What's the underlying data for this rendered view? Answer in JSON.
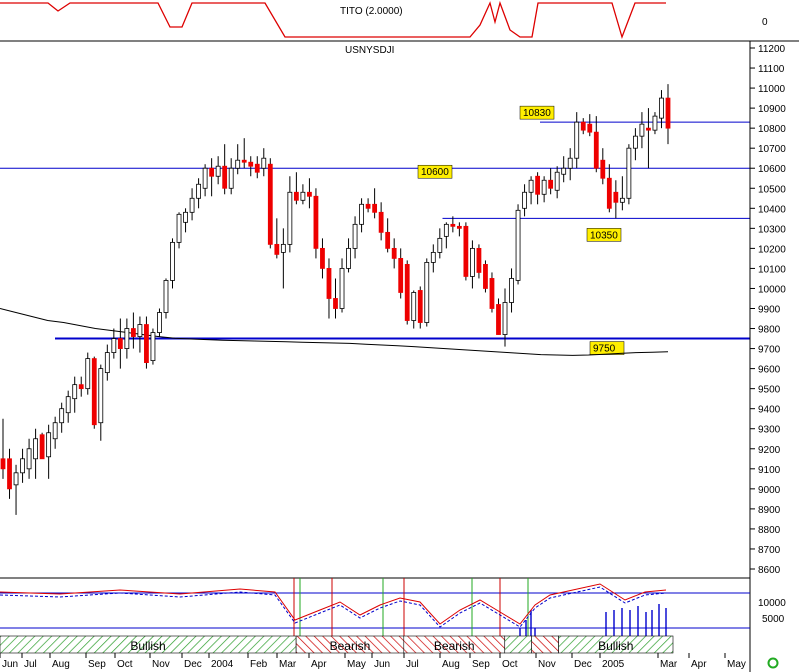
{
  "colors": {
    "bull": "#ffffff",
    "bear": "#ee0000",
    "wick": "#000000",
    "tito": "#dd0000",
    "level": "#0000cc",
    "ma": "#000000",
    "label_bg": "#ffee00",
    "grid_border": "#000000",
    "green_hatch": "#2a9d2a",
    "red_hatch": "#cc0000"
  },
  "top_panel": {
    "title": "TITO (2.0000)",
    "axis_label": "0"
  },
  "chart_data": {
    "type": "candlestick",
    "title": "USNYSDJI",
    "y_ticks": [
      8600,
      8700,
      8800,
      8900,
      9000,
      9100,
      9200,
      9300,
      9400,
      9500,
      9600,
      9700,
      9800,
      9900,
      10000,
      10100,
      10200,
      10300,
      10400,
      10500,
      10600,
      10700,
      10800,
      10900,
      11000,
      11100,
      11200
    ],
    "ylim": [
      8600,
      11200
    ],
    "x_labels": [
      "Jun",
      "Jul",
      "Aug",
      "Sep",
      "Oct",
      "Nov",
      "Dec",
      "2004",
      "Feb",
      "Mar",
      "Apr",
      "May",
      "Jun",
      "Jul",
      "Aug",
      "Sep",
      "Oct",
      "Nov",
      "Dec",
      "2005",
      "Mar",
      "Apr",
      "May"
    ],
    "levels": [
      {
        "value": 10830,
        "label": "10830",
        "start": 0.72
      },
      {
        "value": 10600,
        "label": "10600",
        "start": 0.0
      },
      {
        "value": 10350,
        "label": "10350",
        "start": 0.59
      },
      {
        "value": 9750,
        "label": "9750",
        "start": 0.07
      }
    ],
    "moving_average": [
      9900,
      9880,
      9860,
      9840,
      9830,
      9815,
      9800,
      9790,
      9780,
      9770,
      9760,
      9752,
      9748,
      9745,
      9742,
      9740,
      9738,
      9736,
      9734,
      9732,
      9730,
      9728,
      9726,
      9722,
      9718,
      9714,
      9710,
      9705,
      9700,
      9695,
      9690,
      9685,
      9680,
      9675,
      9670,
      9668,
      9666,
      9668,
      9672,
      9676,
      9680,
      9682,
      9684
    ],
    "candles": [
      {
        "o": 9150,
        "h": 9350,
        "l": 9050,
        "c": 9100
      },
      {
        "o": 9150,
        "h": 9200,
        "l": 8950,
        "c": 9000
      },
      {
        "o": 9020,
        "h": 9120,
        "l": 8870,
        "c": 9080
      },
      {
        "o": 9080,
        "h": 9200,
        "l": 9030,
        "c": 9150
      },
      {
        "o": 9100,
        "h": 9250,
        "l": 9050,
        "c": 9200
      },
      {
        "o": 9150,
        "h": 9300,
        "l": 9050,
        "c": 9250
      },
      {
        "o": 9270,
        "h": 9280,
        "l": 9150,
        "c": 9150
      },
      {
        "o": 9160,
        "h": 9320,
        "l": 9050,
        "c": 9280
      },
      {
        "o": 9250,
        "h": 9360,
        "l": 9200,
        "c": 9330
      },
      {
        "o": 9330,
        "h": 9430,
        "l": 9280,
        "c": 9400
      },
      {
        "o": 9380,
        "h": 9490,
        "l": 9330,
        "c": 9460
      },
      {
        "o": 9450,
        "h": 9560,
        "l": 9380,
        "c": 9520
      },
      {
        "o": 9520,
        "h": 9560,
        "l": 9460,
        "c": 9500
      },
      {
        "o": 9500,
        "h": 9680,
        "l": 9470,
        "c": 9650
      },
      {
        "o": 9650,
        "h": 9660,
        "l": 9300,
        "c": 9320
      },
      {
        "o": 9330,
        "h": 9620,
        "l": 9240,
        "c": 9600
      },
      {
        "o": 9580,
        "h": 9720,
        "l": 9540,
        "c": 9680
      },
      {
        "o": 9680,
        "h": 9800,
        "l": 9650,
        "c": 9750
      },
      {
        "o": 9750,
        "h": 9850,
        "l": 9600,
        "c": 9700
      },
      {
        "o": 9700,
        "h": 9850,
        "l": 9650,
        "c": 9800
      },
      {
        "o": 9800,
        "h": 9880,
        "l": 9700,
        "c": 9760
      },
      {
        "o": 9760,
        "h": 9860,
        "l": 9680,
        "c": 9820
      },
      {
        "o": 9820,
        "h": 9860,
        "l": 9600,
        "c": 9630
      },
      {
        "o": 9640,
        "h": 9800,
        "l": 9620,
        "c": 9780
      },
      {
        "o": 9780,
        "h": 9900,
        "l": 9760,
        "c": 9880
      },
      {
        "o": 9880,
        "h": 10050,
        "l": 9850,
        "c": 10040
      },
      {
        "o": 10040,
        "h": 10250,
        "l": 10000,
        "c": 10230
      },
      {
        "o": 10230,
        "h": 10380,
        "l": 10200,
        "c": 10370
      },
      {
        "o": 10330,
        "h": 10400,
        "l": 10280,
        "c": 10380
      },
      {
        "o": 10380,
        "h": 10500,
        "l": 10340,
        "c": 10450
      },
      {
        "o": 10450,
        "h": 10550,
        "l": 10400,
        "c": 10520
      },
      {
        "o": 10500,
        "h": 10620,
        "l": 10460,
        "c": 10600
      },
      {
        "o": 10600,
        "h": 10650,
        "l": 10460,
        "c": 10560
      },
      {
        "o": 10560,
        "h": 10660,
        "l": 10520,
        "c": 10610
      },
      {
        "o": 10610,
        "h": 10720,
        "l": 10470,
        "c": 10500
      },
      {
        "o": 10500,
        "h": 10650,
        "l": 10470,
        "c": 10600
      },
      {
        "o": 10600,
        "h": 10720,
        "l": 10570,
        "c": 10640
      },
      {
        "o": 10640,
        "h": 10750,
        "l": 10600,
        "c": 10630
      },
      {
        "o": 10630,
        "h": 10660,
        "l": 10560,
        "c": 10610
      },
      {
        "o": 10620,
        "h": 10660,
        "l": 10550,
        "c": 10580
      },
      {
        "o": 10600,
        "h": 10700,
        "l": 10560,
        "c": 10650
      },
      {
        "o": 10620,
        "h": 10650,
        "l": 10200,
        "c": 10220
      },
      {
        "o": 10220,
        "h": 10350,
        "l": 10150,
        "c": 10170
      },
      {
        "o": 10180,
        "h": 10300,
        "l": 10000,
        "c": 10220
      },
      {
        "o": 10220,
        "h": 10560,
        "l": 10180,
        "c": 10480
      },
      {
        "o": 10480,
        "h": 10580,
        "l": 10420,
        "c": 10440
      },
      {
        "o": 10440,
        "h": 10520,
        "l": 10420,
        "c": 10480
      },
      {
        "o": 10480,
        "h": 10550,
        "l": 10400,
        "c": 10460
      },
      {
        "o": 10460,
        "h": 10500,
        "l": 10150,
        "c": 10200
      },
      {
        "o": 10200,
        "h": 10250,
        "l": 10050,
        "c": 10100
      },
      {
        "o": 10100,
        "h": 10150,
        "l": 9850,
        "c": 9950
      },
      {
        "o": 9950,
        "h": 10050,
        "l": 9850,
        "c": 9900
      },
      {
        "o": 9900,
        "h": 10150,
        "l": 9880,
        "c": 10100
      },
      {
        "o": 10100,
        "h": 10250,
        "l": 10080,
        "c": 10200
      },
      {
        "o": 10200,
        "h": 10360,
        "l": 10150,
        "c": 10320
      },
      {
        "o": 10320,
        "h": 10450,
        "l": 10280,
        "c": 10420
      },
      {
        "o": 10420,
        "h": 10450,
        "l": 10380,
        "c": 10400
      },
      {
        "o": 10420,
        "h": 10500,
        "l": 10350,
        "c": 10380
      },
      {
        "o": 10380,
        "h": 10430,
        "l": 10240,
        "c": 10280
      },
      {
        "o": 10280,
        "h": 10350,
        "l": 10180,
        "c": 10200
      },
      {
        "o": 10200,
        "h": 10250,
        "l": 10100,
        "c": 10150
      },
      {
        "o": 10150,
        "h": 10200,
        "l": 9950,
        "c": 9980
      },
      {
        "o": 10120,
        "h": 10140,
        "l": 9820,
        "c": 9840
      },
      {
        "o": 9840,
        "h": 9990,
        "l": 9800,
        "c": 9980
      },
      {
        "o": 9990,
        "h": 10010,
        "l": 9800,
        "c": 9830
      },
      {
        "o": 9830,
        "h": 10150,
        "l": 9810,
        "c": 10130
      },
      {
        "o": 10130,
        "h": 10220,
        "l": 10080,
        "c": 10180
      },
      {
        "o": 10180,
        "h": 10300,
        "l": 10150,
        "c": 10250
      },
      {
        "o": 10260,
        "h": 10330,
        "l": 10200,
        "c": 10320
      },
      {
        "o": 10320,
        "h": 10360,
        "l": 10280,
        "c": 10310
      },
      {
        "o": 10310,
        "h": 10330,
        "l": 10260,
        "c": 10300
      },
      {
        "o": 10310,
        "h": 10330,
        "l": 10040,
        "c": 10060
      },
      {
        "o": 10060,
        "h": 10240,
        "l": 10000,
        "c": 10200
      },
      {
        "o": 10200,
        "h": 10220,
        "l": 10050,
        "c": 10080
      },
      {
        "o": 10120,
        "h": 10140,
        "l": 9980,
        "c": 10000
      },
      {
        "o": 10050,
        "h": 10080,
        "l": 9880,
        "c": 9900
      },
      {
        "o": 9920,
        "h": 9950,
        "l": 9770,
        "c": 9770
      },
      {
        "o": 9770,
        "h": 10000,
        "l": 9710,
        "c": 9930
      },
      {
        "o": 9930,
        "h": 10100,
        "l": 9880,
        "c": 10050
      },
      {
        "o": 10040,
        "h": 10420,
        "l": 10020,
        "c": 10390
      },
      {
        "o": 10400,
        "h": 10520,
        "l": 10360,
        "c": 10480
      },
      {
        "o": 10480,
        "h": 10560,
        "l": 10420,
        "c": 10540
      },
      {
        "o": 10560,
        "h": 10580,
        "l": 10420,
        "c": 10470
      },
      {
        "o": 10470,
        "h": 10560,
        "l": 10430,
        "c": 10540
      },
      {
        "o": 10540,
        "h": 10600,
        "l": 10470,
        "c": 10500
      },
      {
        "o": 10490,
        "h": 10610,
        "l": 10450,
        "c": 10580
      },
      {
        "o": 10570,
        "h": 10660,
        "l": 10530,
        "c": 10600
      },
      {
        "o": 10600,
        "h": 10700,
        "l": 10540,
        "c": 10650
      },
      {
        "o": 10650,
        "h": 10880,
        "l": 10600,
        "c": 10830
      },
      {
        "o": 10830,
        "h": 10850,
        "l": 10770,
        "c": 10790
      },
      {
        "o": 10820,
        "h": 10870,
        "l": 10760,
        "c": 10780
      },
      {
        "o": 10780,
        "h": 10860,
        "l": 10580,
        "c": 10600
      },
      {
        "o": 10640,
        "h": 10700,
        "l": 10520,
        "c": 10550
      },
      {
        "o": 10550,
        "h": 10620,
        "l": 10380,
        "c": 10400
      },
      {
        "o": 10480,
        "h": 10540,
        "l": 10350,
        "c": 10430
      },
      {
        "o": 10430,
        "h": 10560,
        "l": 10390,
        "c": 10450
      },
      {
        "o": 10450,
        "h": 10720,
        "l": 10420,
        "c": 10700
      },
      {
        "o": 10700,
        "h": 10800,
        "l": 10640,
        "c": 10760
      },
      {
        "o": 10760,
        "h": 10880,
        "l": 10700,
        "c": 10820
      },
      {
        "o": 10800,
        "h": 10900,
        "l": 10600,
        "c": 10790
      },
      {
        "o": 10790,
        "h": 10880,
        "l": 10770,
        "c": 10860
      },
      {
        "o": 10850,
        "h": 10990,
        "l": 10800,
        "c": 10950
      },
      {
        "o": 10950,
        "h": 11020,
        "l": 10720,
        "c": 10800
      }
    ],
    "bottom_panel": {
      "axis_labels": [
        "10000",
        "5000"
      ]
    },
    "trend_segments": [
      {
        "label": "Bullish",
        "type": "bull",
        "from": 0.0,
        "to": 0.44
      },
      {
        "label": "Bearish",
        "type": "bear",
        "from": 0.44,
        "to": 0.6
      },
      {
        "label": "Bearish",
        "type": "bear",
        "from": 0.6,
        "to": 0.75
      },
      {
        "label": "",
        "type": "bull",
        "from": 0.75,
        "to": 0.79
      },
      {
        "label": "",
        "type": "bear",
        "from": 0.79,
        "to": 0.83
      },
      {
        "label": "Bullish",
        "type": "bull",
        "from": 0.83,
        "to": 1.0
      }
    ]
  }
}
